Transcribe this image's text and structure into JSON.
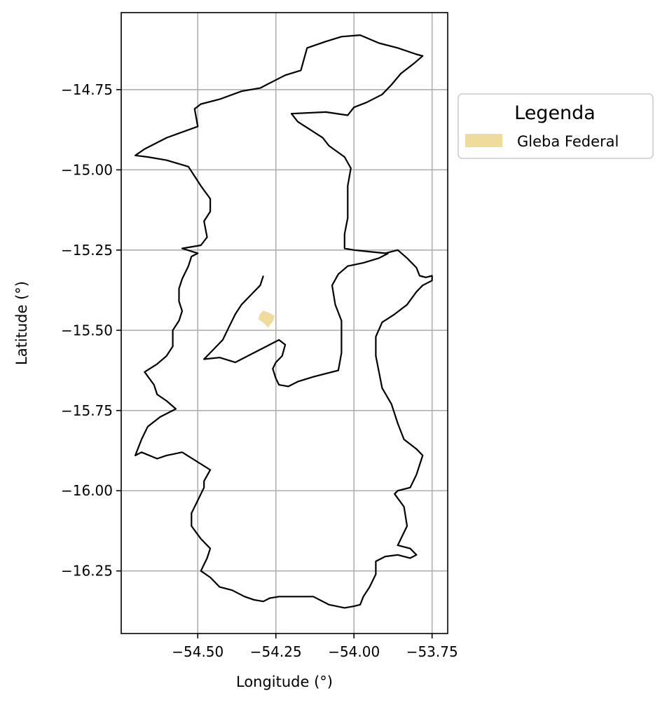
{
  "chart_data": {
    "type": "map",
    "xlabel": "Longitude (°)",
    "ylabel": "Latitude (°)",
    "xlim": [
      -54.745,
      -53.7
    ],
    "ylim": [
      -16.445,
      -14.51
    ],
    "grid": true,
    "x_ticks": [
      {
        "value": -54.5,
        "label": "−54.50"
      },
      {
        "value": -54.25,
        "label": "−54.25"
      },
      {
        "value": -54.0,
        "label": "−54.00"
      },
      {
        "value": -53.75,
        "label": "−53.75"
      }
    ],
    "y_ticks": [
      {
        "value": -14.75,
        "label": "−14.75"
      },
      {
        "value": -15.0,
        "label": "−15.00"
      },
      {
        "value": -15.25,
        "label": "−15.25"
      },
      {
        "value": -15.5,
        "label": "−15.50"
      },
      {
        "value": -15.75,
        "label": "−15.75"
      },
      {
        "value": -16.0,
        "label": "−16.00"
      },
      {
        "value": -16.25,
        "label": "−16.25"
      }
    ],
    "boundary": {
      "stroke": "#000000",
      "coords": [
        [
          -54.49,
          -14.795
        ],
        [
          -54.43,
          -14.78
        ],
        [
          -54.36,
          -14.755
        ],
        [
          -54.3,
          -14.745
        ],
        [
          -54.27,
          -14.73
        ],
        [
          -54.22,
          -14.705
        ],
        [
          -54.17,
          -14.69
        ],
        [
          -54.15,
          -14.62
        ],
        [
          -54.09,
          -14.6
        ],
        [
          -54.04,
          -14.585
        ],
        [
          -53.98,
          -14.58
        ],
        [
          -53.92,
          -14.605
        ],
        [
          -53.86,
          -14.62
        ],
        [
          -53.8,
          -14.64
        ],
        [
          -53.78,
          -14.645
        ],
        [
          -53.81,
          -14.67
        ],
        [
          -53.85,
          -14.7
        ],
        [
          -53.88,
          -14.735
        ],
        [
          -53.91,
          -14.765
        ],
        [
          -53.96,
          -14.79
        ],
        [
          -54.0,
          -14.805
        ],
        [
          -54.02,
          -14.83
        ],
        [
          -54.09,
          -14.82
        ],
        [
          -54.2,
          -14.825
        ],
        [
          -54.18,
          -14.85
        ],
        [
          -54.14,
          -14.875
        ],
        [
          -54.1,
          -14.9
        ],
        [
          -54.08,
          -14.925
        ],
        [
          -54.03,
          -14.96
        ],
        [
          -54.01,
          -14.995
        ],
        [
          -54.02,
          -15.05
        ],
        [
          -54.02,
          -15.1
        ],
        [
          -54.02,
          -15.15
        ],
        [
          -54.03,
          -15.2
        ],
        [
          -54.03,
          -15.245
        ],
        [
          -54.0,
          -15.25
        ],
        [
          -53.95,
          -15.255
        ],
        [
          -53.9,
          -15.26
        ],
        [
          -53.86,
          -15.25
        ],
        [
          -53.83,
          -15.275
        ],
        [
          -53.8,
          -15.305
        ],
        [
          -53.79,
          -15.33
        ],
        [
          -53.77,
          -15.335
        ],
        [
          -53.75,
          -15.33
        ],
        [
          -53.75,
          -15.345
        ],
        [
          -53.78,
          -15.36
        ],
        [
          -53.8,
          -15.38
        ],
        [
          -53.83,
          -15.42
        ],
        [
          -53.87,
          -15.45
        ],
        [
          -53.91,
          -15.475
        ],
        [
          -53.93,
          -15.52
        ],
        [
          -53.93,
          -15.58
        ],
        [
          -53.92,
          -15.63
        ],
        [
          -53.91,
          -15.68
        ],
        [
          -53.88,
          -15.73
        ],
        [
          -53.86,
          -15.79
        ],
        [
          -53.84,
          -15.84
        ],
        [
          -53.8,
          -15.87
        ],
        [
          -53.78,
          -15.89
        ],
        [
          -53.8,
          -15.95
        ],
        [
          -53.82,
          -15.99
        ],
        [
          -53.86,
          -16.0
        ],
        [
          -53.87,
          -16.01
        ],
        [
          -53.84,
          -16.05
        ],
        [
          -53.83,
          -16.11
        ],
        [
          -53.86,
          -16.17
        ],
        [
          -53.82,
          -16.18
        ],
        [
          -53.8,
          -16.2
        ],
        [
          -53.82,
          -16.21
        ],
        [
          -53.86,
          -16.2
        ],
        [
          -53.9,
          -16.205
        ],
        [
          -53.93,
          -16.22
        ],
        [
          -53.93,
          -16.26
        ],
        [
          -53.95,
          -16.3
        ],
        [
          -53.97,
          -16.33
        ],
        [
          -53.98,
          -16.355
        ],
        [
          -54.0,
          -16.36
        ],
        [
          -54.03,
          -16.365
        ],
        [
          -54.08,
          -16.355
        ],
        [
          -54.13,
          -16.33
        ],
        [
          -54.18,
          -16.33
        ],
        [
          -54.24,
          -16.33
        ],
        [
          -54.27,
          -16.335
        ],
        [
          -54.29,
          -16.345
        ],
        [
          -54.32,
          -16.34
        ],
        [
          -54.35,
          -16.33
        ],
        [
          -54.39,
          -16.31
        ],
        [
          -54.43,
          -16.3
        ],
        [
          -54.46,
          -16.27
        ],
        [
          -54.49,
          -16.25
        ],
        [
          -54.47,
          -16.21
        ],
        [
          -54.46,
          -16.18
        ],
        [
          -54.49,
          -16.15
        ],
        [
          -54.52,
          -16.11
        ],
        [
          -54.52,
          -16.07
        ],
        [
          -54.5,
          -16.03
        ],
        [
          -54.48,
          -15.99
        ],
        [
          -54.48,
          -15.97
        ],
        [
          -54.46,
          -15.935
        ],
        [
          -54.55,
          -15.88
        ],
        [
          -54.6,
          -15.89
        ],
        [
          -54.63,
          -15.9
        ],
        [
          -54.68,
          -15.88
        ],
        [
          -54.7,
          -15.89
        ],
        [
          -54.68,
          -15.84
        ],
        [
          -54.66,
          -15.8
        ],
        [
          -54.62,
          -15.77
        ],
        [
          -54.57,
          -15.745
        ],
        [
          -54.6,
          -15.72
        ],
        [
          -54.63,
          -15.7
        ],
        [
          -54.64,
          -15.67
        ],
        [
          -54.67,
          -15.63
        ],
        [
          -54.63,
          -15.605
        ],
        [
          -54.6,
          -15.58
        ],
        [
          -54.58,
          -15.55
        ],
        [
          -54.58,
          -15.5
        ],
        [
          -54.56,
          -15.47
        ],
        [
          -54.55,
          -15.44
        ],
        [
          -54.56,
          -15.41
        ],
        [
          -54.56,
          -15.37
        ],
        [
          -54.55,
          -15.34
        ],
        [
          -54.53,
          -15.3
        ],
        [
          -54.52,
          -15.27
        ],
        [
          -54.5,
          -15.26
        ],
        [
          -54.55,
          -15.245
        ],
        [
          -54.49,
          -15.235
        ],
        [
          -54.47,
          -15.21
        ],
        [
          -54.48,
          -15.16
        ],
        [
          -54.46,
          -15.13
        ],
        [
          -54.46,
          -15.09
        ],
        [
          -54.49,
          -15.05
        ],
        [
          -54.51,
          -15.02
        ],
        [
          -54.53,
          -14.99
        ],
        [
          -54.6,
          -14.97
        ],
        [
          -54.66,
          -14.96
        ],
        [
          -54.7,
          -14.955
        ],
        [
          -54.67,
          -14.935
        ],
        [
          -54.6,
          -14.9
        ],
        [
          -54.5,
          -14.865
        ],
        [
          -54.51,
          -14.81
        ],
        [
          -54.49,
          -14.795
        ]
      ]
    },
    "inner_boundary": {
      "stroke": "#000000",
      "coords": [
        [
          -54.29,
          -15.33
        ],
        [
          -54.32,
          -15.335
        ],
        [
          -54.35,
          -15.34
        ],
        [
          -54.38,
          -15.355
        ],
        [
          -54.42,
          -15.37
        ],
        [
          -54.45,
          -15.4
        ],
        [
          -54.49,
          -15.41
        ],
        [
          -54.52,
          -15.395
        ],
        [
          -54.51,
          -15.38
        ],
        [
          -54.49,
          -15.38
        ],
        [
          -54.45,
          -15.39
        ],
        [
          -54.42,
          -15.37
        ],
        [
          -54.38,
          -15.35
        ],
        [
          -54.35,
          -15.34
        ],
        [
          -54.32,
          -15.335
        ],
        [
          -54.29,
          -15.33
        ]
      ]
    },
    "inner_boundary2": {
      "stroke": "#000000",
      "coords": [
        [
          -54.29,
          -15.33
        ],
        [
          -54.3,
          -15.36
        ],
        [
          -54.33,
          -15.39
        ],
        [
          -54.36,
          -15.42
        ],
        [
          -54.38,
          -15.45
        ],
        [
          -54.4,
          -15.49
        ],
        [
          -54.42,
          -15.53
        ],
        [
          -54.46,
          -15.57
        ],
        [
          -54.48,
          -15.59
        ],
        [
          -54.43,
          -15.585
        ],
        [
          -54.38,
          -15.6
        ],
        [
          -54.33,
          -15.575
        ],
        [
          -54.27,
          -15.545
        ],
        [
          -54.24,
          -15.53
        ],
        [
          -54.22,
          -15.545
        ],
        [
          -54.23,
          -15.58
        ],
        [
          -54.25,
          -15.6
        ],
        [
          -54.26,
          -15.62
        ],
        [
          -54.25,
          -15.65
        ],
        [
          -54.24,
          -15.67
        ],
        [
          -54.21,
          -15.675
        ],
        [
          -54.18,
          -15.66
        ],
        [
          -54.13,
          -15.645
        ],
        [
          -54.05,
          -15.625
        ],
        [
          -54.04,
          -15.57
        ],
        [
          -54.04,
          -15.52
        ],
        [
          -54.04,
          -15.47
        ],
        [
          -54.06,
          -15.42
        ],
        [
          -54.07,
          -15.36
        ],
        [
          -54.05,
          -15.325
        ],
        [
          -54.02,
          -15.3
        ],
        [
          -53.97,
          -15.29
        ],
        [
          -53.92,
          -15.275
        ],
        [
          -53.89,
          -15.26
        ]
      ]
    },
    "series": [
      {
        "name": "Gleba Federal",
        "color": "#efdc9c",
        "coords": [
          [
            -54.3,
            -15.45
          ],
          [
            -54.29,
            -15.44
          ],
          [
            -54.275,
            -15.445
          ],
          [
            -54.255,
            -15.455
          ],
          [
            -54.26,
            -15.47
          ],
          [
            -54.275,
            -15.49
          ],
          [
            -54.29,
            -15.475
          ],
          [
            -54.305,
            -15.465
          ],
          [
            -54.3,
            -15.45
          ]
        ]
      }
    ],
    "legend": {
      "title": "Legenda",
      "placement": "outside-right",
      "entries": [
        {
          "label": "Gleba Federal",
          "color": "#efdc9c"
        }
      ]
    }
  }
}
